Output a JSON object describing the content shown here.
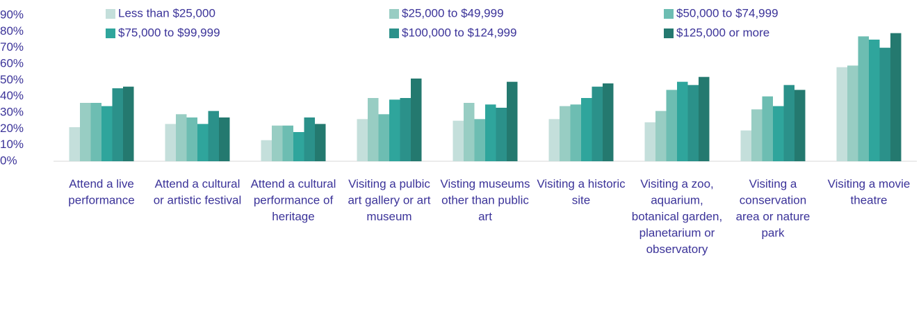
{
  "chart_data": {
    "type": "bar",
    "categories": [
      "Attend a live performance",
      "Attend a cultural or artistic festival",
      "Attend a cultural performance of heritage",
      "Visiting a pulbic art gallery or art museum",
      "Visting museums other than public art",
      "Visiting a historic site",
      "Visiting a zoo, aquarium, botanical garden, planetarium or observatory",
      "Visiting a conservation area or nature park",
      "Visiting a movie theatre"
    ],
    "series": [
      {
        "name": "Less than $25,000",
        "color": "#c4dfdb",
        "values": [
          21,
          23,
          13,
          26,
          25,
          26,
          24,
          19,
          58
        ]
      },
      {
        "name": "$25,000 to $49,999",
        "color": "#98cdc3",
        "values": [
          36,
          29,
          22,
          39,
          36,
          34,
          31,
          32,
          59
        ]
      },
      {
        "name": "$50,000 to $74,999",
        "color": "#6dbdb2",
        "values": [
          36,
          27,
          22,
          29,
          26,
          35,
          44,
          40,
          77
        ]
      },
      {
        "name": "$75,000 to $99,999",
        "color": "#2fa59c",
        "values": [
          34,
          23,
          18,
          38,
          35,
          39,
          49,
          34,
          75
        ]
      },
      {
        "name": "$100,000 to $124,999",
        "color": "#2b918a",
        "values": [
          45,
          31,
          27,
          39,
          33,
          46,
          47,
          47,
          70
        ]
      },
      {
        "name": "$125,000 or more",
        "color": "#24796f",
        "values": [
          46,
          27,
          23,
          51,
          49,
          48,
          52,
          44,
          79
        ]
      }
    ],
    "ylim": [
      0,
      90
    ],
    "yticks": [
      {
        "value": 0,
        "label": "0%"
      },
      {
        "value": 10,
        "label": "10%"
      },
      {
        "value": 20,
        "label": "20%"
      },
      {
        "value": 30,
        "label": "30%"
      },
      {
        "value": 40,
        "label": "40%"
      },
      {
        "value": 50,
        "label": "50%"
      },
      {
        "value": 60,
        "label": "60%"
      },
      {
        "value": 70,
        "label": "70%"
      },
      {
        "value": 80,
        "label": "80%"
      },
      {
        "value": 90,
        "label": "90%"
      }
    ]
  }
}
